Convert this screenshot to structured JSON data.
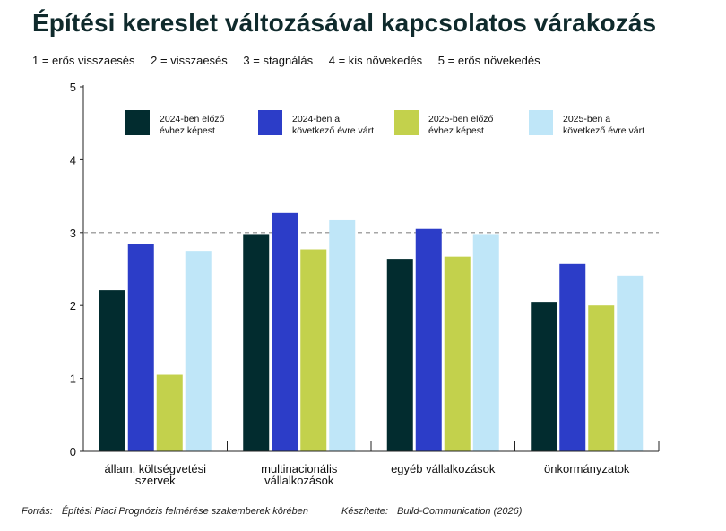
{
  "title": "Építési kereslet változásával kapcsolatos várakozás",
  "scale_items": [
    "1 = erős visszaesés",
    "2 = visszaesés",
    "3 = stagnálás",
    "4 = kis növekedés",
    "5 = erős növekedés"
  ],
  "footer": {
    "source_label": "Forrás:",
    "source_text": "Építési Piaci Prognózis felmérése szakemberek körében",
    "author_label": "Készítette:",
    "author_text": "Build-Communication (2026)"
  },
  "chart_data": {
    "type": "bar",
    "categories": [
      [
        "állam, költségvetési",
        "szervek"
      ],
      [
        "multinacionális",
        "vállalkozások"
      ],
      [
        "egyéb vállalkozások"
      ],
      [
        "önkormányzatok"
      ]
    ],
    "series": [
      {
        "name": [
          "2024-ben előző",
          "évhez képest"
        ],
        "color": "#022c2f",
        "values": [
          2.21,
          2.98,
          2.64,
          2.05
        ]
      },
      {
        "name": [
          "2024-ben a",
          "következő évre várt"
        ],
        "color": "#2c3dc8",
        "values": [
          2.84,
          3.27,
          3.05,
          2.57
        ]
      },
      {
        "name": [
          "2025-ben előző",
          "évhez képest"
        ],
        "color": "#c3d14c",
        "values": [
          1.05,
          2.77,
          2.67,
          2.0
        ]
      },
      {
        "name": [
          "2025-ben a",
          "következő évre várt"
        ],
        "color": "#bfe6f8",
        "values": [
          2.75,
          3.17,
          2.98,
          2.41
        ]
      }
    ],
    "ylim": [
      0,
      5
    ],
    "yticks": [
      "0",
      "1",
      "2",
      "3",
      "4",
      "5"
    ],
    "reference_line": 3,
    "legend_position": "top",
    "grid": false
  }
}
